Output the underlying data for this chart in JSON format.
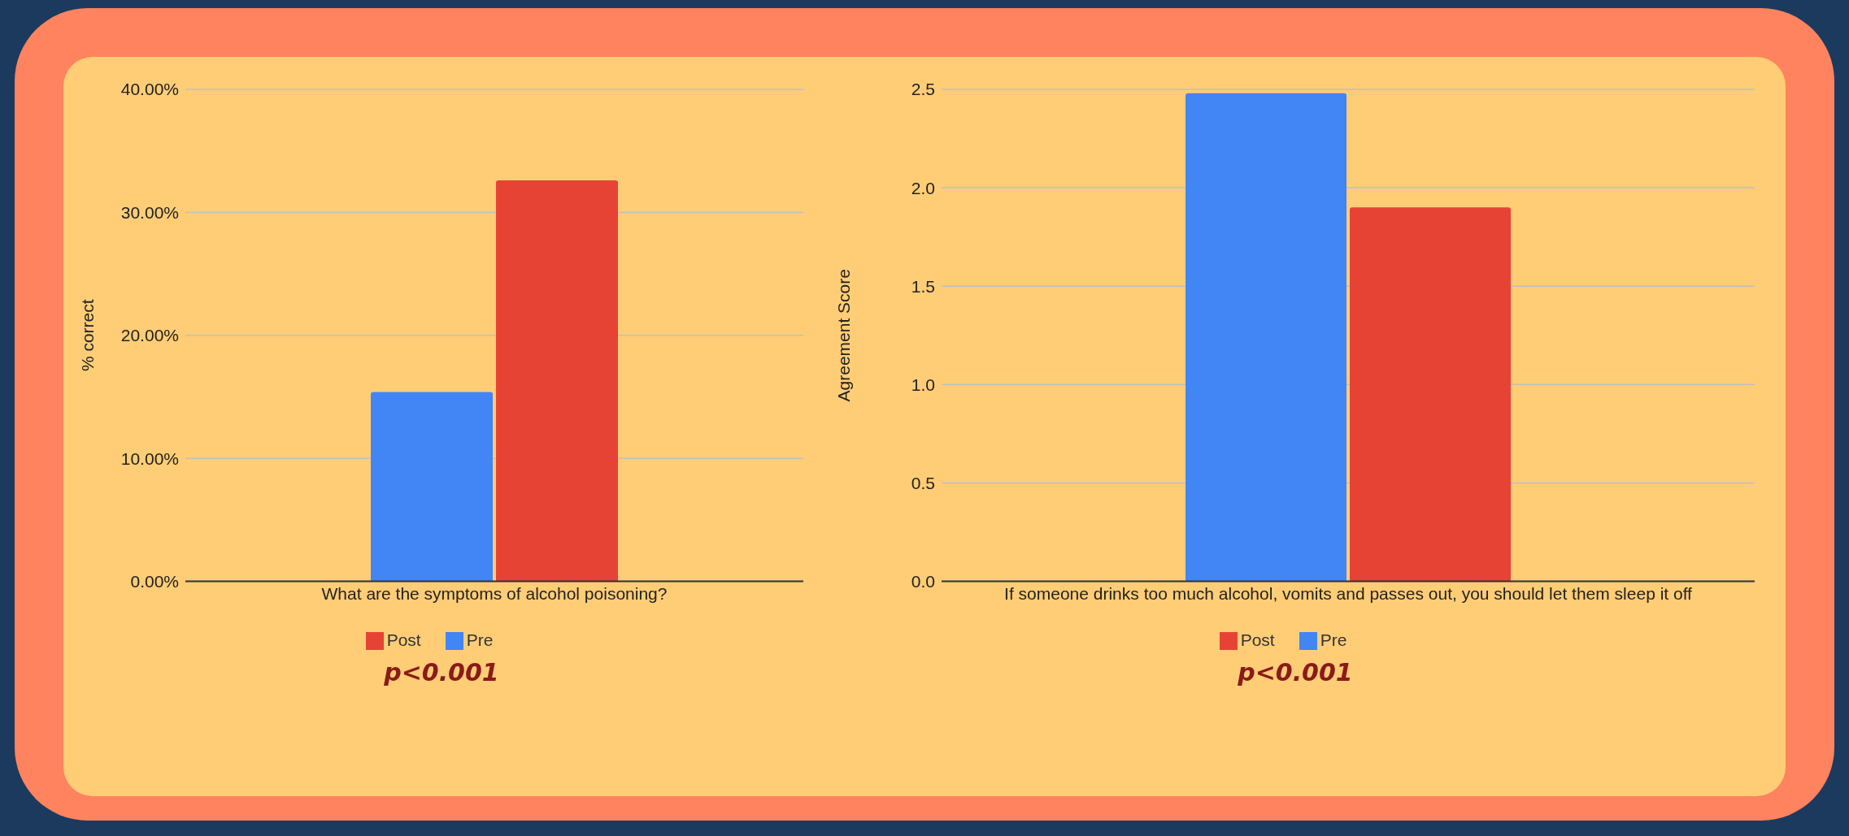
{
  "chart_data": [
    {
      "type": "bar",
      "ylabel": "% correct",
      "categories": [
        "What are the symptoms of alcohol poisoning?"
      ],
      "series": [
        {
          "name": "Pre",
          "color": "#4285f4",
          "values": [
            15.4
          ]
        },
        {
          "name": "Post",
          "color": "#e64335",
          "values": [
            32.6
          ]
        }
      ],
      "ylim": [
        0,
        40
      ],
      "yticks": [
        {
          "value": 0,
          "label": "0.00%"
        },
        {
          "value": 10,
          "label": "10.00%"
        },
        {
          "value": 20,
          "label": "20.00%"
        },
        {
          "value": 30,
          "label": "30.00%"
        },
        {
          "value": 40,
          "label": "40.00%"
        }
      ],
      "grid": "y",
      "legend": "bottom",
      "annotations": [
        "p<0.001"
      ]
    },
    {
      "type": "bar",
      "ylabel": "Agreement Score",
      "categories": [
        "If someone drinks too much alcohol, vomits and passes out, you should let them sleep it off"
      ],
      "series": [
        {
          "name": "Pre",
          "color": "#4285f4",
          "values": [
            2.48
          ]
        },
        {
          "name": "Post",
          "color": "#e64335",
          "values": [
            1.9
          ]
        }
      ],
      "ylim": [
        0,
        2.5
      ],
      "yticks": [
        {
          "value": 0,
          "label": "0.0"
        },
        {
          "value": 0.5,
          "label": "0.5"
        },
        {
          "value": 1,
          "label": "1.0"
        },
        {
          "value": 1.5,
          "label": "1.5"
        },
        {
          "value": 2,
          "label": "2.0"
        },
        {
          "value": 2.5,
          "label": "2.5"
        }
      ],
      "grid": "y",
      "legend": "bottom",
      "annotations": [
        "p<0.001"
      ]
    }
  ]
}
